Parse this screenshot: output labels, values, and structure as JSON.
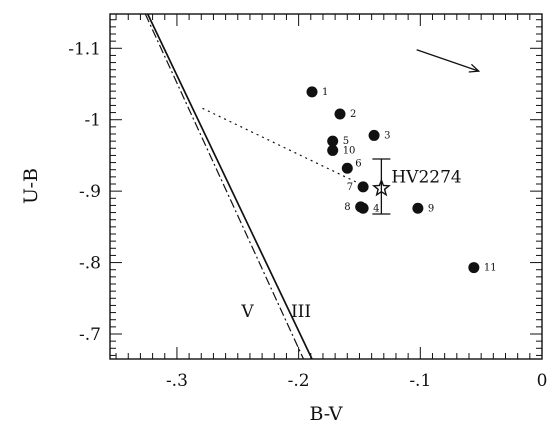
{
  "chart_data": {
    "type": "scatter",
    "title": "",
    "xlabel": "B-V",
    "ylabel": "U-B",
    "xlim": [
      -0.355,
      0.0
    ],
    "ylim": [
      -0.665,
      -1.148
    ],
    "y_inverted": true,
    "grid": false,
    "xticks": [
      {
        "value": -0.3,
        "label": "-.3"
      },
      {
        "value": -0.2,
        "label": "-.2"
      },
      {
        "value": -0.1,
        "label": "-.1"
      },
      {
        "value": 0.0,
        "label": "0"
      }
    ],
    "yticks": [
      {
        "value": -1.1,
        "label": "-1.1"
      },
      {
        "value": -1.0,
        "label": "-1"
      },
      {
        "value": -0.9,
        "label": "-.9"
      },
      {
        "value": -0.8,
        "label": "-.8"
      },
      {
        "value": -0.7,
        "label": "-.7"
      }
    ],
    "series": [
      {
        "name": "",
        "marker": "circle",
        "points": [
          {
            "label": "1",
            "x": -0.189,
            "y": -1.039
          },
          {
            "label": "2",
            "x": -0.166,
            "y": -1.008
          },
          {
            "label": "3",
            "x": -0.138,
            "y": -0.978
          },
          {
            "label": "5",
            "x": -0.172,
            "y": -0.97
          },
          {
            "label": "10",
            "x": -0.172,
            "y": -0.957
          },
          {
            "label": "6",
            "x": -0.16,
            "y": -0.932
          },
          {
            "label": "7",
            "x": -0.147,
            "y": -0.906
          },
          {
            "label": "8",
            "x": -0.149,
            "y": -0.878
          },
          {
            "label": "4",
            "x": -0.147,
            "y": -0.876
          },
          {
            "label": "9",
            "x": -0.102,
            "y": -0.876
          },
          {
            "label": "11",
            "x": -0.056,
            "y": -0.793
          }
        ]
      }
    ],
    "highlight": {
      "label": "HV2274",
      "marker": "star",
      "x": -0.132,
      "y": -0.904,
      "y_err_low": -0.868,
      "y_err_high": -0.945
    },
    "lines": [
      {
        "name": "III",
        "style": "solid",
        "points": [
          [
            -0.324,
            -1.148
          ],
          [
            -0.189,
            -0.665
          ]
        ]
      },
      {
        "name": "V",
        "style": "dashdot",
        "points": [
          [
            -0.326,
            -1.148
          ],
          [
            -0.196,
            -0.665
          ]
        ]
      },
      {
        "name": "",
        "style": "dotted",
        "points": [
          [
            -0.279,
            -1.016
          ],
          [
            -0.142,
            -0.904
          ]
        ]
      }
    ],
    "line_labels": [
      {
        "text": "V",
        "x": -0.242,
        "y": -0.724
      },
      {
        "text": "III",
        "x": -0.198,
        "y": -0.724
      }
    ],
    "arrow": {
      "from": [
        -0.103,
        -1.098
      ],
      "to": [
        -0.052,
        -1.068
      ]
    }
  }
}
